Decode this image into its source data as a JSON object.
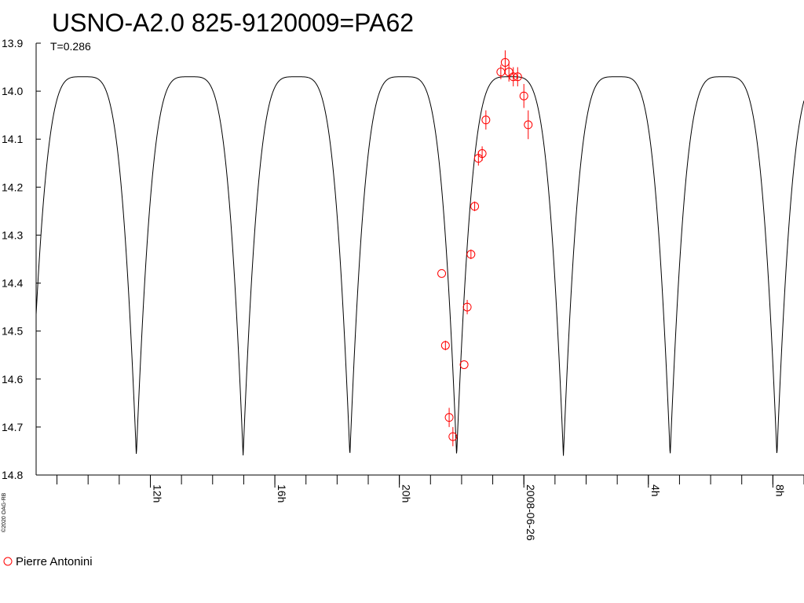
{
  "chart_data": {
    "type": "scatter",
    "title": "USNO-A2.0 825-9120009=PA62",
    "subtitle": "T=0.286",
    "credit": "©2020 OAG-RB",
    "y_axis": {
      "inverted": true,
      "ylim": [
        13.9,
        14.8
      ],
      "tick_labels": [
        "13.9",
        "14.0",
        "14.1",
        "14.2",
        "14.3",
        "14.4",
        "14.5",
        "14.6",
        "14.7",
        "14.8"
      ]
    },
    "x_axis": {
      "unit": "hours",
      "xlim": [
        8.33,
        33.0
      ],
      "tick_labels": [
        {
          "x": 12,
          "label": "12h"
        },
        {
          "x": 16,
          "label": "16h"
        },
        {
          "x": 20,
          "label": "20h"
        },
        {
          "x": 24,
          "label": "2008-06-26"
        },
        {
          "x": 28,
          "label": "4h"
        },
        {
          "x": 32,
          "label": "8h"
        }
      ],
      "minor_tick_step_hours": 1
    },
    "model_curve": {
      "period_hours": 3.43,
      "min_time_hours": 21.84,
      "max_mag": 14.76,
      "min_mag": 13.97
    },
    "series": [
      {
        "name": "Pierre Antonini",
        "color": "#ff0000",
        "marker": "circle",
        "points": [
          {
            "x": 21.36,
            "y": 14.38,
            "err": 0.0
          },
          {
            "x": 21.48,
            "y": 14.53,
            "err": 0.01
          },
          {
            "x": 21.6,
            "y": 14.68,
            "err": 0.02
          },
          {
            "x": 21.72,
            "y": 14.72,
            "err": 0.02
          },
          {
            "x": 22.08,
            "y": 14.57,
            "err": 0.0
          },
          {
            "x": 22.18,
            "y": 14.45,
            "err": 0.015
          },
          {
            "x": 22.3,
            "y": 14.34,
            "err": 0.01
          },
          {
            "x": 22.42,
            "y": 14.24,
            "err": 0.01
          },
          {
            "x": 22.54,
            "y": 14.14,
            "err": 0.015
          },
          {
            "x": 22.66,
            "y": 14.13,
            "err": 0.015
          },
          {
            "x": 22.78,
            "y": 14.06,
            "err": 0.02
          },
          {
            "x": 23.26,
            "y": 13.96,
            "err": 0.015
          },
          {
            "x": 23.4,
            "y": 13.94,
            "err": 0.025
          },
          {
            "x": 23.52,
            "y": 13.96,
            "err": 0.02
          },
          {
            "x": 23.66,
            "y": 13.97,
            "err": 0.02
          },
          {
            "x": 23.8,
            "y": 13.97,
            "err": 0.02
          },
          {
            "x": 24.0,
            "y": 14.01,
            "err": 0.025
          },
          {
            "x": 24.14,
            "y": 14.07,
            "err": 0.03
          }
        ]
      }
    ],
    "legend": {
      "position": "bottom-left"
    }
  }
}
